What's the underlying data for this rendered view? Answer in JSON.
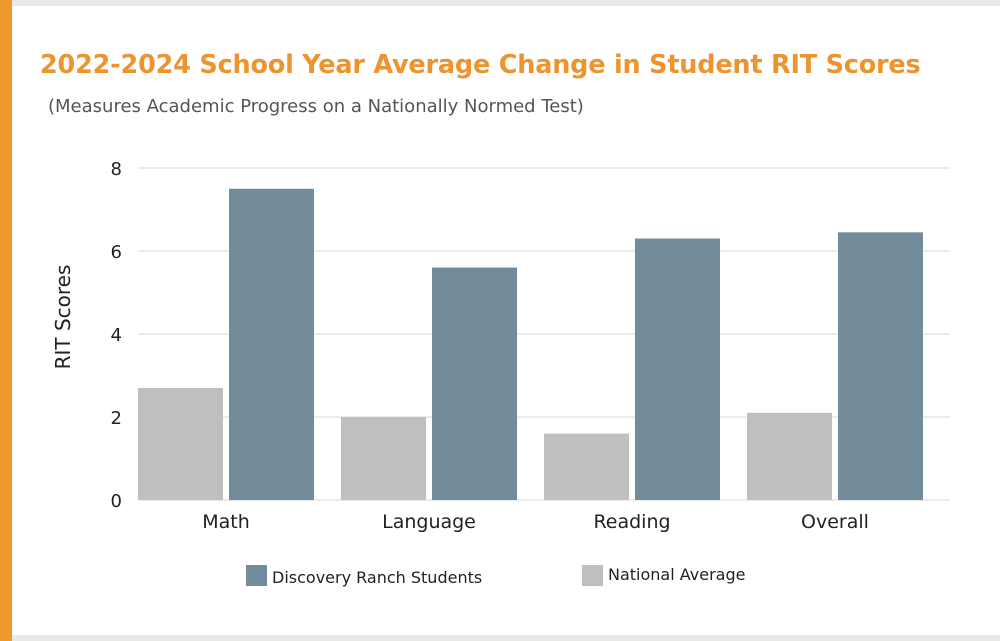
{
  "header": {
    "title": "2022-2024 School Year Average Change in Student RIT Scores",
    "subtitle": "(Measures Academic Progress on a Nationally Normed Test)"
  },
  "colors": {
    "accent": "#ee9a2b",
    "title": "#ec9430",
    "discovery": "#728c9c",
    "national": "#bfbfbf",
    "grid": "#d9d9d9"
  },
  "chart_data": {
    "type": "bar",
    "title": "2022-2024 School Year Average Change in Student RIT Scores",
    "subtitle": "(Measures Academic Progress on a Nationally Normed Test)",
    "xlabel": "",
    "ylabel": "RIT Scores",
    "ylim": [
      0,
      8
    ],
    "yticks": [
      0,
      2,
      4,
      6,
      8
    ],
    "grid": true,
    "legend_position": "bottom",
    "categories": [
      "Math",
      "Language",
      "Reading",
      "Overall"
    ],
    "series": [
      {
        "name": "National Average",
        "color": "#bfbfbf",
        "values": [
          2.7,
          2.0,
          1.6,
          2.1
        ]
      },
      {
        "name": "Discovery Ranch Students",
        "color": "#728c9c",
        "values": [
          7.5,
          5.6,
          6.3,
          6.45
        ]
      }
    ],
    "legend": [
      "Discovery Ranch Students",
      "National Average"
    ]
  }
}
